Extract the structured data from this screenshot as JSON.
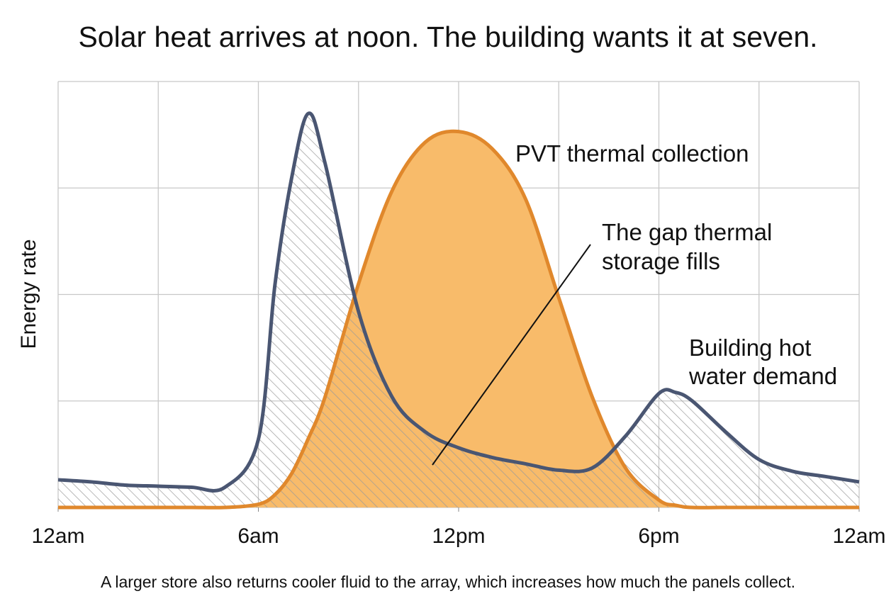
{
  "chart_data": {
    "type": "area",
    "title": "Solar heat arrives at noon. The building wants it at seven.",
    "y_label": "Energy rate",
    "caption": "A larger store also returns cooler fluid to the array, which increases how much the panels collect.",
    "x": [
      0,
      1,
      2,
      3,
      4,
      5,
      6,
      6.5,
      7,
      7.5,
      8,
      9,
      10,
      11,
      12,
      13,
      14,
      15,
      16,
      17,
      18,
      18.5,
      19,
      20,
      21,
      22,
      23,
      24
    ],
    "xlim": [
      0,
      24
    ],
    "xticks": [
      {
        "value": 0,
        "label": "12am"
      },
      {
        "value": 6,
        "label": "6am"
      },
      {
        "value": 12,
        "label": "12pm"
      },
      {
        "value": 18,
        "label": "6pm"
      },
      {
        "value": 24,
        "label": "12am"
      }
    ],
    "xgrid": [
      0,
      3,
      6,
      9,
      12,
      15,
      18,
      21,
      24
    ],
    "ylim": [
      0,
      4
    ],
    "yticks": [
      0,
      1,
      2,
      3,
      4
    ],
    "grid": true,
    "series": [
      {
        "name": "PVT thermal collection",
        "color": "#e0882c",
        "fill": "#f8bb6a",
        "values": [
          0,
          0,
          0,
          0,
          0,
          0,
          0.03,
          0.12,
          0.32,
          0.65,
          1.04,
          2.1,
          2.97,
          3.43,
          3.53,
          3.37,
          2.9,
          1.97,
          1.04,
          0.37,
          0.07,
          0.02,
          0,
          0,
          0,
          0,
          0,
          0
        ]
      },
      {
        "name": "Building hot water demand",
        "color": "#4a5672",
        "fill": "hatch",
        "values": [
          0.26,
          0.24,
          0.21,
          0.2,
          0.19,
          0.19,
          0.64,
          2.1,
          3.1,
          3.7,
          3.23,
          1.84,
          1.04,
          0.71,
          0.56,
          0.47,
          0.41,
          0.35,
          0.37,
          0.67,
          1.07,
          1.08,
          1.0,
          0.71,
          0.45,
          0.34,
          0.29,
          0.24
        ]
      }
    ],
    "annotations": [
      {
        "lines": [
          "The gap thermal",
          "storage fills"
        ]
      }
    ]
  }
}
